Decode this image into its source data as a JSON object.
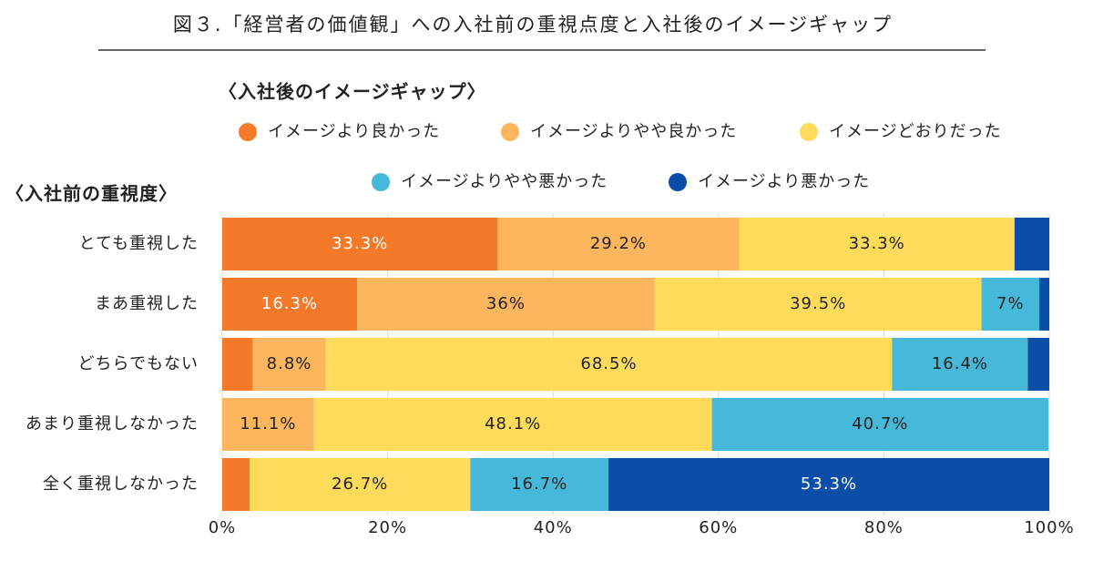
{
  "chart_data": {
    "type": "stacked-barh",
    "title": "図３.「経営者の価値観」への入社前の重視点度と入社後のイメージギャップ",
    "legend_title": "〈入社後のイメージギャップ〉",
    "ylabel": "〈入社前の重視度〉",
    "categories": [
      "とても重視した",
      "まあ重視した",
      "どちらでもない",
      "あまり重視しなかった",
      "全く重視しなかった"
    ],
    "series": [
      {
        "name": "イメージより良かった",
        "color": "#f47a2a",
        "label_color": "#ffffff",
        "values": [
          33.3,
          16.3,
          3.7,
          0,
          3.3
        ],
        "value_labels": [
          "33.3%",
          "16.3%",
          null,
          null,
          null
        ]
      },
      {
        "name": "イメージよりやや良かった",
        "color": "#fdb55e",
        "label_color": "#222222",
        "values": [
          29.2,
          36,
          8.8,
          11.1,
          0
        ],
        "value_labels": [
          "29.2%",
          "36%",
          "8.8%",
          "11.1%",
          null
        ]
      },
      {
        "name": "イメージどおりだった",
        "color": "#fedb5b",
        "label_color": "#222222",
        "values": [
          33.3,
          39.5,
          68.5,
          48.1,
          26.7
        ],
        "value_labels": [
          "33.3%",
          "39.5%",
          "68.5%",
          "48.1%",
          "26.7%"
        ]
      },
      {
        "name": "イメージよりやや悪かった",
        "color": "#46b8d9",
        "label_color": "#222222",
        "values": [
          0,
          7,
          16.4,
          40.7,
          16.7
        ],
        "value_labels": [
          null,
          "7%",
          "16.4%",
          "40.7%",
          "16.7%"
        ]
      },
      {
        "name": "イメージより悪かった",
        "color": "#0b4ea8",
        "label_color": "#ffffff",
        "values": [
          4.2,
          1.2,
          2.6,
          0,
          53.3
        ],
        "value_labels": [
          null,
          null,
          null,
          null,
          "53.3%"
        ]
      }
    ],
    "xlim": [
      0,
      100
    ],
    "xticks": [
      {
        "value": 0,
        "label": "0%"
      },
      {
        "value": 20,
        "label": "20%"
      },
      {
        "value": 40,
        "label": "40%"
      },
      {
        "value": 60,
        "label": "60%"
      },
      {
        "value": 80,
        "label": "80%"
      },
      {
        "value": 100,
        "label": "100%"
      }
    ],
    "grid": true
  }
}
